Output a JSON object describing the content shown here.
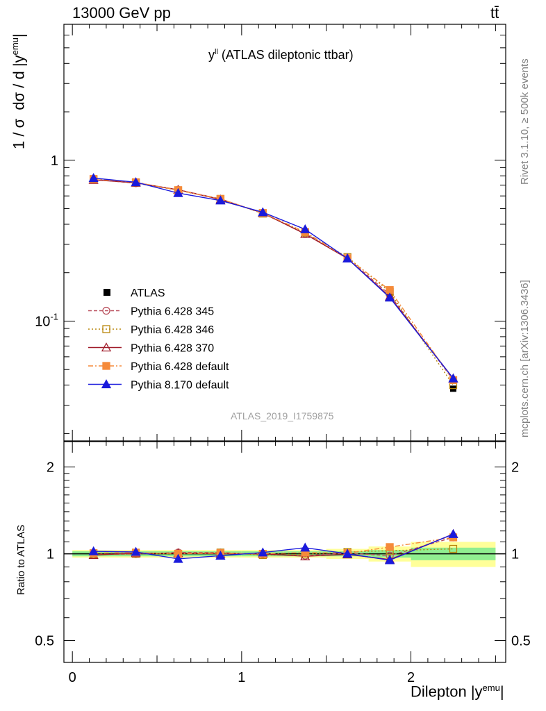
{
  "header": {
    "left": "13000 GeV pp",
    "right": "tt̄"
  },
  "annotation": {
    "title_main": "y",
    "title_sup": "ll",
    "title_rest": "(ATLAS dileptonic ttbar)",
    "analysis_id": "ATLAS_2019_I1759875",
    "side_rivet": "Rivet 3.1.10, ≥ 500k events",
    "side_mcplots": "mcplots.cern.ch [arXiv:1306.3436]"
  },
  "colors": {
    "ATLAS": "#000000",
    "p345": "#b94f5c",
    "p346": "#b8860b",
    "p370": "#a01c2a",
    "pdef": "#f58a3a",
    "p8": "#1a1adc",
    "band_inner": "#90ee90",
    "band_outer": "#ffff99"
  },
  "chart_data": [
    {
      "type": "line",
      "panel": "main",
      "ylabel": "1 / σ dσ / d |y^emu|",
      "yscale": "log",
      "ylim": [
        0.018,
        7.0
      ],
      "xlim": [
        -0.05,
        2.56
      ],
      "yticks": [
        "1",
        "10^-1"
      ],
      "legend_position": "lower-left",
      "x": [
        0.125,
        0.375,
        0.625,
        0.875,
        1.125,
        1.375,
        1.625,
        1.875,
        2.25
      ],
      "series": [
        {
          "name": "ATLAS",
          "values": [
            0.76,
            0.72,
            0.65,
            0.57,
            0.47,
            0.355,
            0.245,
            0.148,
            0.038
          ]
        },
        {
          "name": "Pythia 6.428 345",
          "values": [
            0.76,
            0.72,
            0.655,
            0.575,
            0.468,
            0.35,
            0.247,
            0.146,
            0.043
          ]
        },
        {
          "name": "Pythia 6.428 346",
          "values": [
            0.76,
            0.725,
            0.65,
            0.575,
            0.466,
            0.355,
            0.25,
            0.152,
            0.04
          ]
        },
        {
          "name": "Pythia 6.428 370",
          "values": [
            0.755,
            0.725,
            0.655,
            0.57,
            0.47,
            0.348,
            0.245,
            0.142,
            0.044
          ]
        },
        {
          "name": "Pythia 6.428 default",
          "values": [
            0.765,
            0.73,
            0.652,
            0.575,
            0.47,
            0.358,
            0.246,
            0.156,
            0.043
          ]
        },
        {
          "name": "Pythia 8.170 default",
          "values": [
            0.775,
            0.73,
            0.625,
            0.562,
            0.475,
            0.372,
            0.245,
            0.14,
            0.044
          ]
        }
      ]
    },
    {
      "type": "line",
      "panel": "ratio",
      "xlabel": "Dilepton |y^emu|",
      "ylabel": "Ratio to ATLAS",
      "yscale": "log",
      "ylim": [
        0.42,
        2.45
      ],
      "xlim": [
        -0.05,
        2.56
      ],
      "xticks": [
        "0",
        "1",
        "2"
      ],
      "yticks": [
        "2",
        "1",
        "0.5"
      ],
      "x": [
        0.125,
        0.375,
        0.625,
        0.875,
        1.125,
        1.375,
        1.625,
        1.875,
        2.25
      ],
      "band_inner": [
        0.02,
        0.02,
        0.02,
        0.02,
        0.02,
        0.02,
        0.02,
        0.03,
        0.05
      ],
      "band_outer": [
        0.03,
        0.03,
        0.03,
        0.03,
        0.03,
        0.03,
        0.04,
        0.06,
        0.1
      ],
      "series": [
        {
          "name": "Pythia 6.428 345",
          "values": [
            0.995,
            0.998,
            1.01,
            1.01,
            0.995,
            0.985,
            1.005,
            0.985,
            1.14
          ]
        },
        {
          "name": "Pythia 6.428 346",
          "values": [
            0.995,
            1.0,
            1.0,
            1.01,
            0.99,
            0.995,
            1.015,
            1.025,
            1.04
          ]
        },
        {
          "name": "Pythia 6.428 370",
          "values": [
            0.99,
            1.005,
            1.005,
            1.0,
            1.0,
            0.98,
            0.995,
            0.955,
            1.17
          ]
        },
        {
          "name": "Pythia 6.428 default",
          "values": [
            1.005,
            1.01,
            1.0,
            1.005,
            1.0,
            1.01,
            1.005,
            1.055,
            1.14
          ]
        },
        {
          "name": "Pythia 8.170 default",
          "values": [
            1.02,
            1.015,
            0.96,
            0.985,
            1.01,
            1.05,
            1.0,
            0.95,
            1.17
          ]
        }
      ]
    }
  ]
}
